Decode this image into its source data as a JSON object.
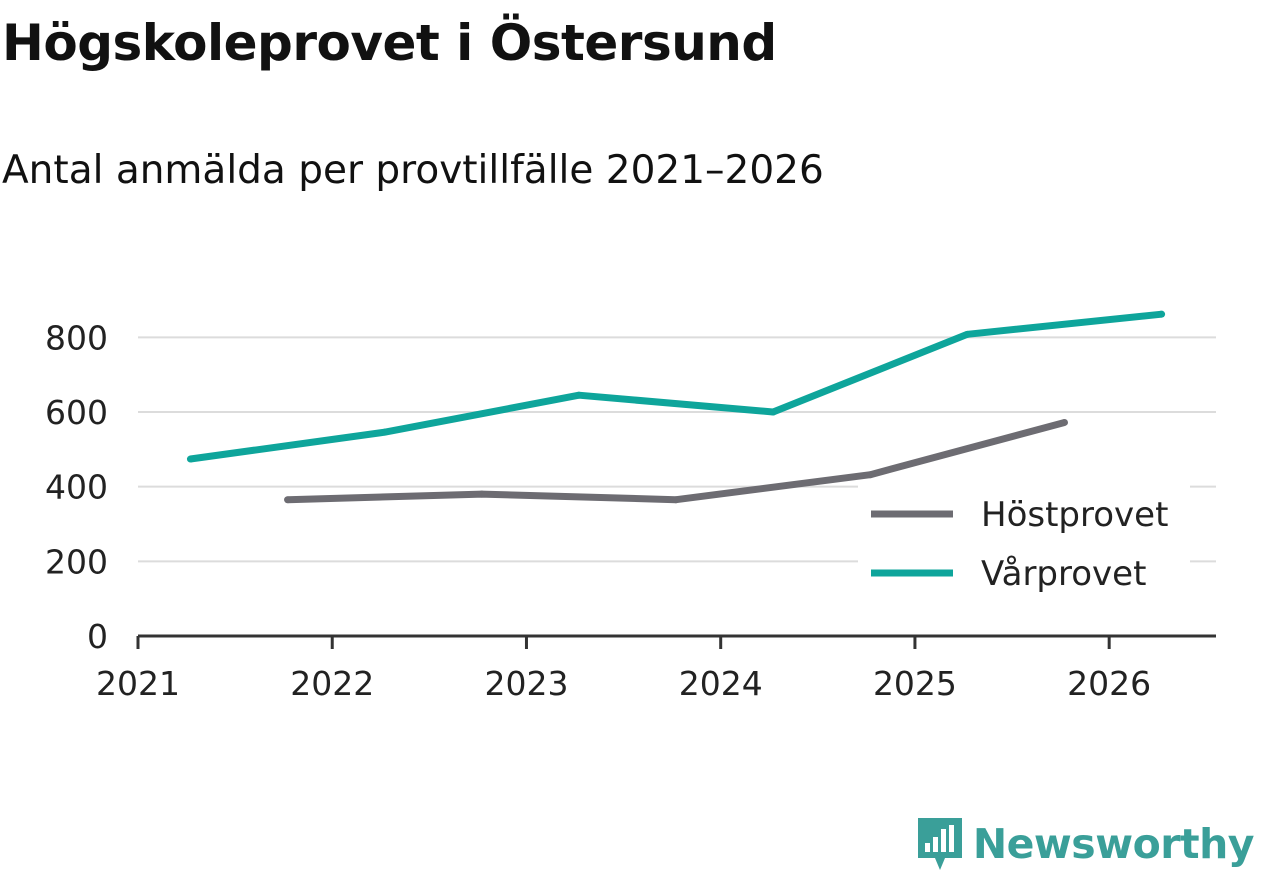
{
  "title": "Högskoleprovet i Östersund",
  "subtitle": "Antal anmälda per provtillfälle 2021–2026",
  "brand": {
    "name": "Newsworthy",
    "icon": "newsworthy-logo-icon",
    "color": "#3a9f99"
  },
  "chart_data": {
    "type": "line",
    "title": "Högskoleprovet i Östersund",
    "subtitle": "Antal anmälda per provtillfälle 2021–2026",
    "xlabel": "",
    "ylabel": "",
    "xlim": [
      2021,
      2026.55
    ],
    "ylim": [
      0,
      900
    ],
    "x_ticks": [
      "2021",
      "2022",
      "2023",
      "2024",
      "2025",
      "2026"
    ],
    "y_ticks": [
      "0",
      "200",
      "400",
      "600",
      "800"
    ],
    "grid": true,
    "legend_position": "bottom-right",
    "series": [
      {
        "name": "Höstprovet",
        "color": "#6d6c72",
        "x": [
          2021.77,
          2022.77,
          2023.77,
          2024.77,
          2025.77
        ],
        "values": [
          365,
          380,
          365,
          432,
          572
        ]
      },
      {
        "name": "Vårprovet",
        "color": "#0ea59b",
        "x": [
          2021.27,
          2022.27,
          2023.27,
          2024.27,
          2025.27,
          2026.27
        ],
        "values": [
          474,
          546,
          645,
          600,
          808,
          862
        ]
      }
    ]
  }
}
